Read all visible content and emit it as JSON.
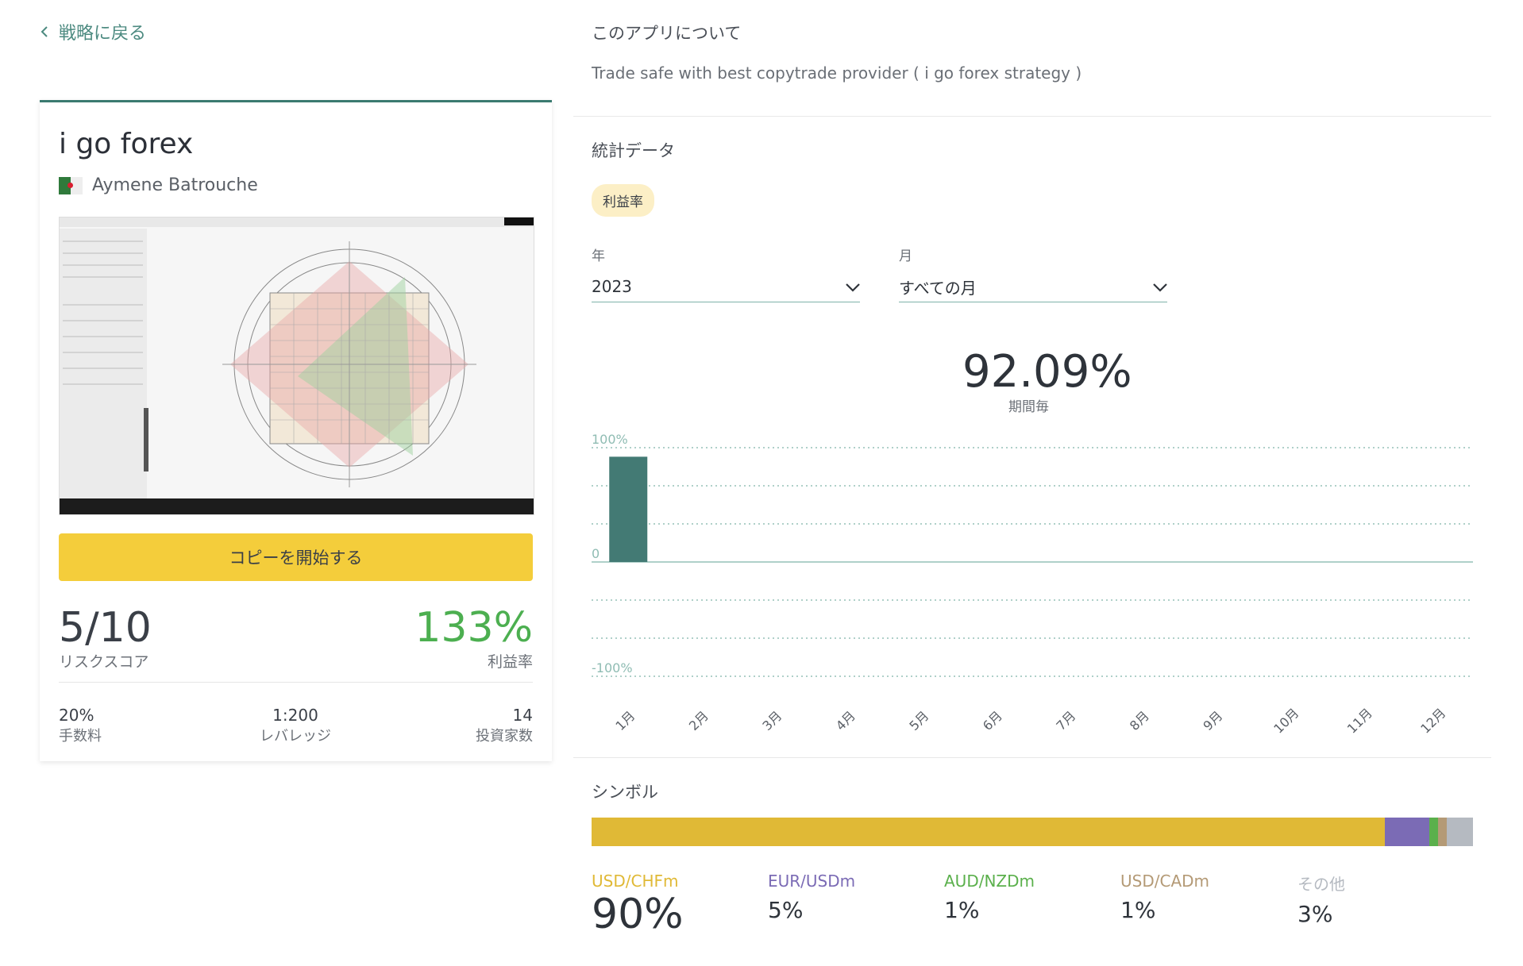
{
  "back": {
    "label": "戦略に戻る"
  },
  "card": {
    "title": "i go forex",
    "author": "Aymene Batrouche",
    "copy_button": "コピーを開始する",
    "risk_score": "5/10",
    "risk_label": "リスクスコア",
    "profit_value": "133%",
    "profit_label": "利益率",
    "stats": [
      {
        "value": "20%",
        "label": "手数料"
      },
      {
        "value": "1:200",
        "label": "レバレッジ"
      },
      {
        "value": "14",
        "label": "投資家数"
      }
    ]
  },
  "about": {
    "heading": "このアプリについて",
    "text": "Trade safe with best copytrade provider ( i go forex strategy )"
  },
  "stats_section": {
    "heading": "統計データ",
    "chip": "利益率",
    "year_label": "年",
    "year_value": "2023",
    "month_label": "月",
    "month_value": "すべての月",
    "kpi_value": "92.09%",
    "kpi_sub": "期間毎"
  },
  "chart_data": {
    "type": "bar",
    "categories": [
      "1月",
      "2月",
      "3月",
      "4月",
      "5月",
      "6月",
      "7月",
      "8月",
      "9月",
      "10月",
      "11月",
      "12月"
    ],
    "values": [
      92.09,
      0,
      0,
      0,
      0,
      0,
      0,
      0,
      0,
      0,
      0,
      0
    ],
    "ylim": [
      -100,
      100
    ],
    "y_ticks": [
      "100%",
      "0",
      "-100%"
    ],
    "grid": true,
    "bar_color": "#437a74"
  },
  "symbols": {
    "heading": "シンボル",
    "items": [
      {
        "name": "USD/CHFm",
        "pct": "90%",
        "value": 90,
        "color": "#e0b936"
      },
      {
        "name": "EUR/USDm",
        "pct": "5%",
        "value": 5,
        "color": "#7b6bb5"
      },
      {
        "name": "AUD/NZDm",
        "pct": "1%",
        "value": 1,
        "color": "#5bb04c"
      },
      {
        "name": "USD/CADm",
        "pct": "1%",
        "value": 1,
        "color": "#b49a76"
      },
      {
        "name": "その他",
        "pct": "3%",
        "value": 3,
        "color": "#b5bac1"
      }
    ]
  }
}
